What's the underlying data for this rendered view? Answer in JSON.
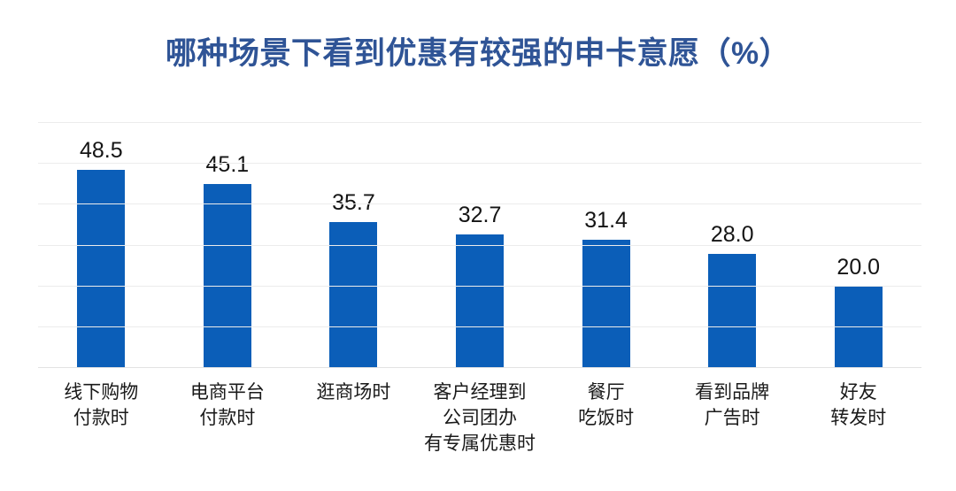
{
  "chart_data": {
    "type": "bar",
    "title": "哪种场景下看到优惠有较强的申卡意愿（%）",
    "categories": [
      [
        "线下购物",
        "付款时"
      ],
      [
        "电商平台",
        "付款时"
      ],
      [
        "逛商场时"
      ],
      [
        "客户经理到",
        "公司团办",
        "有专属优惠时"
      ],
      [
        "餐厅",
        "吃饭时"
      ],
      [
        "看到品牌",
        "广告时"
      ],
      [
        "好友",
        "转发时"
      ]
    ],
    "values": [
      48.5,
      45.1,
      35.7,
      32.7,
      31.4,
      28.0,
      20.0
    ],
    "value_labels": [
      "48.5",
      "45.1",
      "35.7",
      "32.7",
      "31.4",
      "28.0",
      "20.0"
    ],
    "xlabel": "",
    "ylabel": "",
    "ylim": [
      0,
      60
    ],
    "grid_step": 10,
    "grid": true,
    "legend_position": "none",
    "colors": {
      "bar": "#0B5EB8",
      "title": "#2F5496",
      "value_label": "#141414",
      "category_label": "#1a1a1a",
      "gridline": "#ececec",
      "baseline": "#e2e2e2",
      "background": "#ffffff"
    }
  }
}
